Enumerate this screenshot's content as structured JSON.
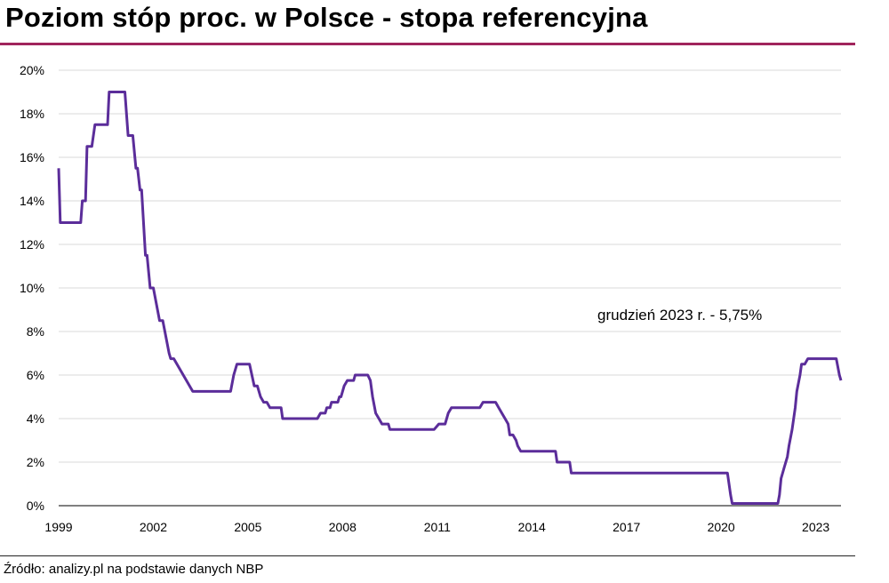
{
  "title": "Poziom stóp proc. w Polsce - stopa referencyjna",
  "source": "Źródło: analizy.pl na podstawie danych NBP",
  "colors": {
    "title_rule": "#a0245c",
    "line": "#5b2d9a",
    "grid": "#d9d9d9"
  },
  "chart_data": {
    "type": "line",
    "title": "Poziom stóp proc. w Polsce - stopa referencyjna",
    "xlabel": "",
    "ylabel": "",
    "xlim": [
      1999.0,
      2023.8
    ],
    "ylim": [
      0,
      20
    ],
    "grid": true,
    "x_ticks": [
      1999,
      2002,
      2005,
      2008,
      2011,
      2014,
      2017,
      2020,
      2023
    ],
    "y_ticks": [
      0,
      2,
      4,
      6,
      8,
      10,
      12,
      14,
      16,
      18,
      20
    ],
    "y_tick_labels": [
      "0%",
      "2%",
      "4%",
      "6%",
      "8%",
      "10%",
      "12%",
      "14%",
      "16%",
      "18%",
      "20%"
    ],
    "annotation": "grudzień  2023 r. - 5,75%",
    "series": [
      {
        "values": [
          [
            1999.0,
            15.5
          ],
          [
            1999.05,
            13.0
          ],
          [
            1999.7,
            13.0
          ],
          [
            1999.75,
            14.0
          ],
          [
            1999.85,
            14.0
          ],
          [
            1999.9,
            16.5
          ],
          [
            2000.05,
            16.5
          ],
          [
            2000.15,
            17.5
          ],
          [
            2000.55,
            17.5
          ],
          [
            2000.6,
            19.0
          ],
          [
            2001.1,
            19.0
          ],
          [
            2001.2,
            17.0
          ],
          [
            2001.35,
            17.0
          ],
          [
            2001.45,
            15.5
          ],
          [
            2001.5,
            15.5
          ],
          [
            2001.58,
            14.5
          ],
          [
            2001.63,
            14.5
          ],
          [
            2001.75,
            11.5
          ],
          [
            2001.8,
            11.5
          ],
          [
            2001.9,
            10.0
          ],
          [
            2002.0,
            10.0
          ],
          [
            2002.2,
            8.5
          ],
          [
            2002.3,
            8.5
          ],
          [
            2002.5,
            7.0
          ],
          [
            2002.55,
            6.75
          ],
          [
            2002.65,
            6.75
          ],
          [
            2003.25,
            5.25
          ],
          [
            2004.45,
            5.25
          ],
          [
            2004.55,
            6.0
          ],
          [
            2004.65,
            6.5
          ],
          [
            2005.05,
            6.5
          ],
          [
            2005.2,
            5.5
          ],
          [
            2005.3,
            5.5
          ],
          [
            2005.4,
            5.0
          ],
          [
            2005.5,
            4.75
          ],
          [
            2005.6,
            4.75
          ],
          [
            2005.7,
            4.5
          ],
          [
            2006.05,
            4.5
          ],
          [
            2006.1,
            4.0
          ],
          [
            2007.2,
            4.0
          ],
          [
            2007.3,
            4.25
          ],
          [
            2007.45,
            4.25
          ],
          [
            2007.5,
            4.5
          ],
          [
            2007.6,
            4.5
          ],
          [
            2007.65,
            4.75
          ],
          [
            2007.85,
            4.75
          ],
          [
            2007.9,
            5.0
          ],
          [
            2007.95,
            5.0
          ],
          [
            2008.05,
            5.5
          ],
          [
            2008.15,
            5.75
          ],
          [
            2008.35,
            5.75
          ],
          [
            2008.4,
            6.0
          ],
          [
            2008.8,
            6.0
          ],
          [
            2008.88,
            5.75
          ],
          [
            2008.95,
            5.0
          ],
          [
            2009.05,
            4.25
          ],
          [
            2009.15,
            4.0
          ],
          [
            2009.25,
            3.75
          ],
          [
            2009.45,
            3.75
          ],
          [
            2009.5,
            3.5
          ],
          [
            2010.9,
            3.5
          ],
          [
            2011.05,
            3.75
          ],
          [
            2011.25,
            3.75
          ],
          [
            2011.35,
            4.25
          ],
          [
            2011.45,
            4.5
          ],
          [
            2012.35,
            4.5
          ],
          [
            2012.45,
            4.75
          ],
          [
            2012.85,
            4.75
          ],
          [
            2012.95,
            4.5
          ],
          [
            2013.05,
            4.25
          ],
          [
            2013.15,
            4.0
          ],
          [
            2013.25,
            3.75
          ],
          [
            2013.3,
            3.25
          ],
          [
            2013.4,
            3.25
          ],
          [
            2013.5,
            3.0
          ],
          [
            2013.55,
            2.75
          ],
          [
            2013.65,
            2.5
          ],
          [
            2014.75,
            2.5
          ],
          [
            2014.8,
            2.0
          ],
          [
            2015.2,
            2.0
          ],
          [
            2015.25,
            1.5
          ],
          [
            2020.2,
            1.5
          ],
          [
            2020.3,
            0.5
          ],
          [
            2020.35,
            0.1
          ],
          [
            2021.8,
            0.1
          ],
          [
            2021.85,
            0.5
          ],
          [
            2021.9,
            1.25
          ],
          [
            2022.0,
            1.75
          ],
          [
            2022.1,
            2.25
          ],
          [
            2022.15,
            2.75
          ],
          [
            2022.25,
            3.5
          ],
          [
            2022.35,
            4.5
          ],
          [
            2022.4,
            5.25
          ],
          [
            2022.5,
            6.0
          ],
          [
            2022.55,
            6.5
          ],
          [
            2022.65,
            6.5
          ],
          [
            2022.75,
            6.75
          ],
          [
            2023.65,
            6.75
          ],
          [
            2023.75,
            6.0
          ],
          [
            2023.8,
            5.75
          ]
        ]
      }
    ]
  }
}
